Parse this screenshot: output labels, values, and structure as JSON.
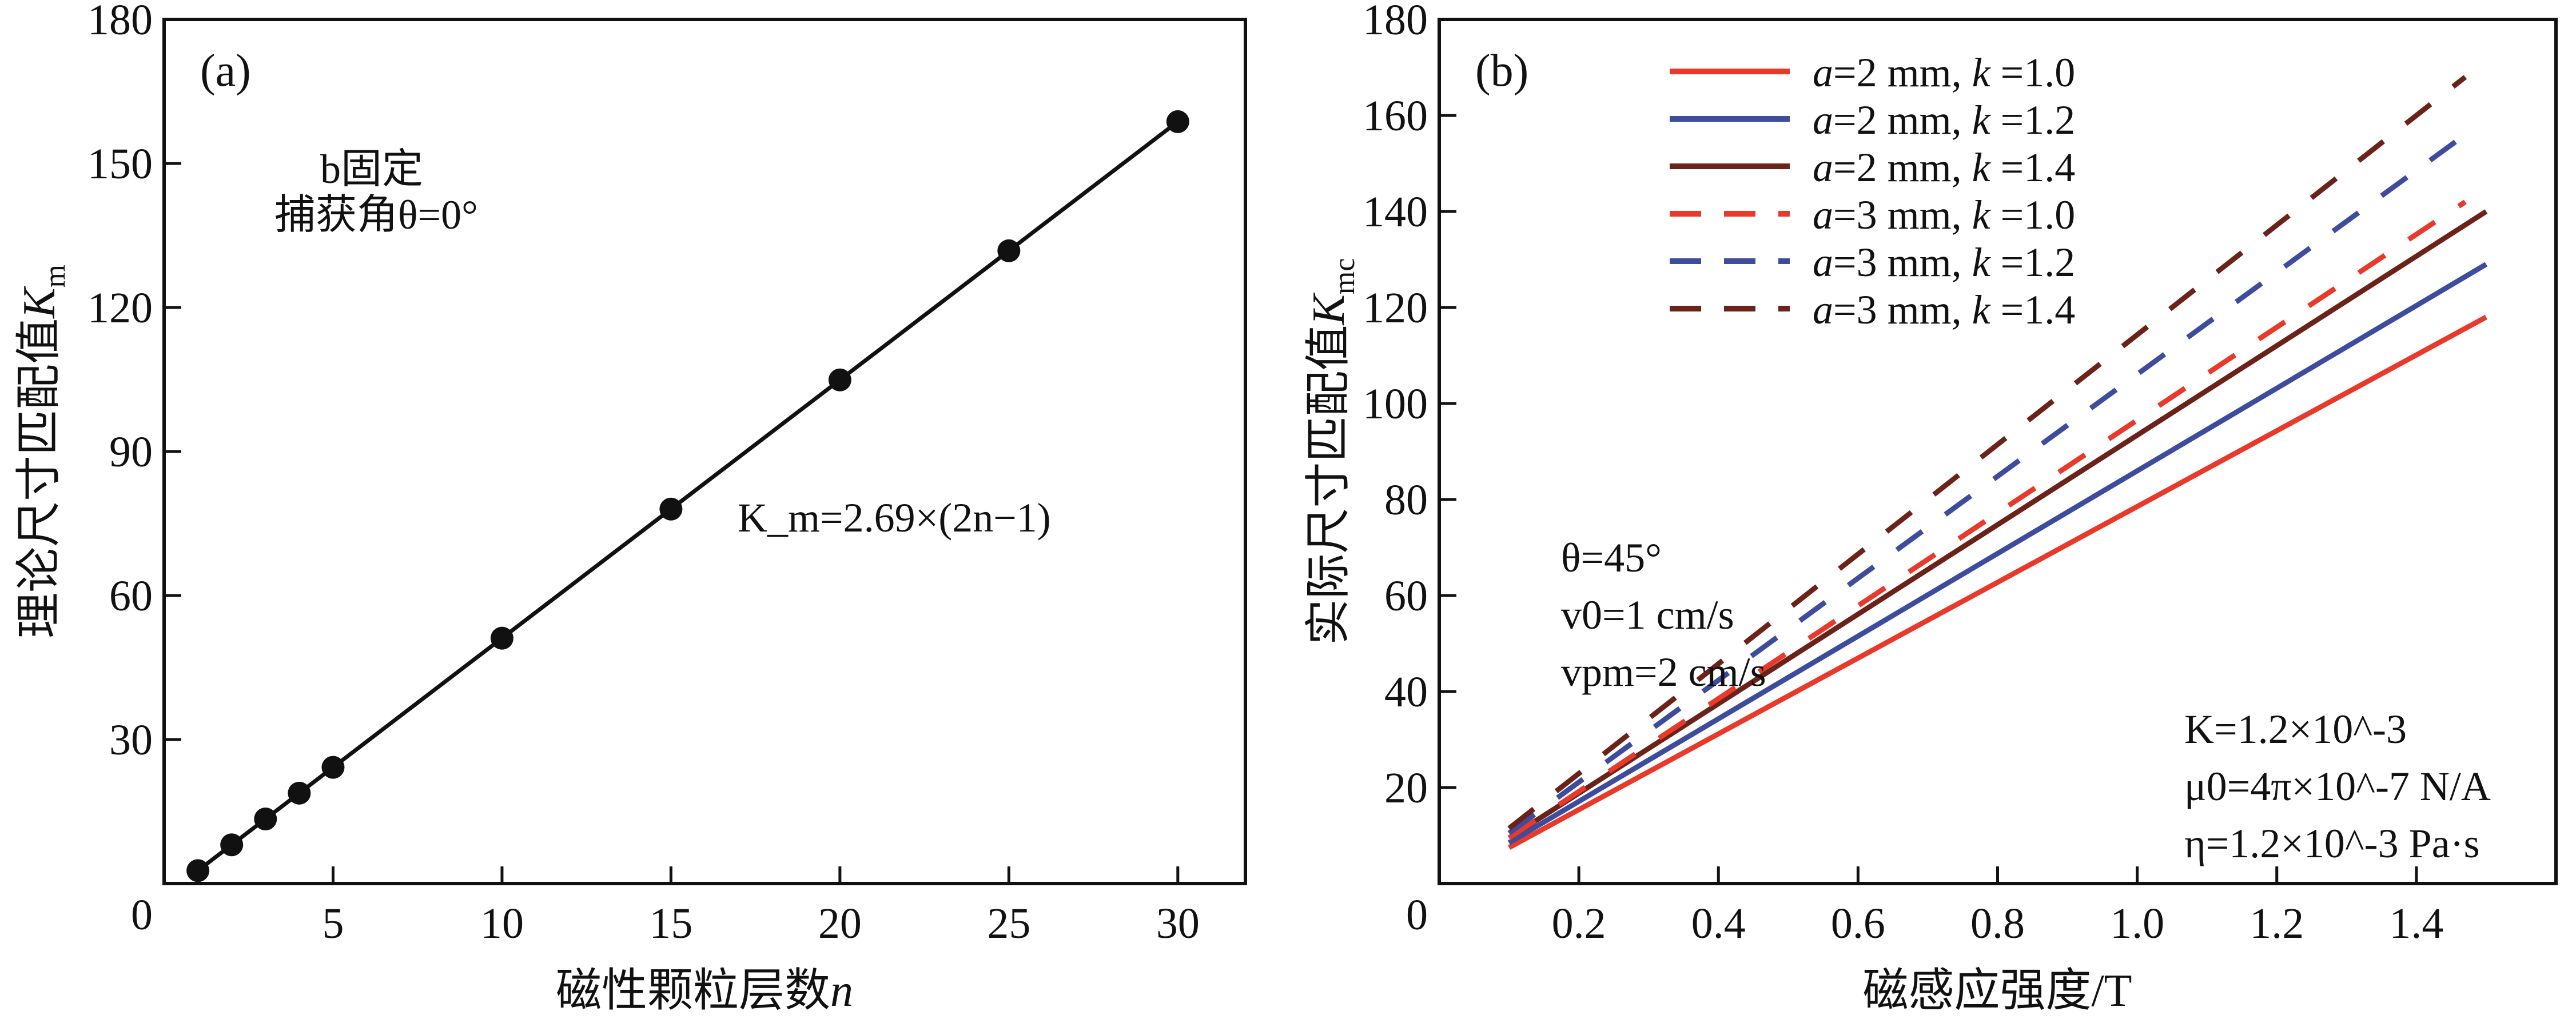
{
  "chart_data": [
    {
      "type": "scatter",
      "panel_label": "(a)",
      "xlabel": "磁性颗粒层数n",
      "ylabel": "理论尺寸匹配值K_m",
      "xlim": [
        0,
        32
      ],
      "ylim": [
        0,
        180
      ],
      "xticks": [
        5,
        10,
        15,
        20,
        25,
        30
      ],
      "yticks": [
        0,
        30,
        60,
        90,
        120,
        150,
        180
      ],
      "grid": false,
      "annotations": [
        "b固定",
        "捕获角θ=0°",
        "K_m=2.69×(2n−1)"
      ],
      "fit_line": {
        "style": "solid",
        "color": "#111111"
      },
      "x": [
        1,
        2,
        3,
        4,
        5,
        10,
        15,
        20,
        25,
        30
      ],
      "y": [
        2.69,
        8.07,
        13.45,
        18.83,
        24.21,
        51.11,
        78.01,
        104.91,
        131.81,
        158.71
      ]
    },
    {
      "type": "line",
      "panel_label": "(b)",
      "xlabel": "磁感应强度/T",
      "ylabel": "实际尺寸匹配值K_mc",
      "xlim": [
        0,
        1.6
      ],
      "ylim": [
        0,
        180
      ],
      "xticks": [
        "0.2",
        "0.4",
        "0.6",
        "0.8",
        "1.0",
        "1.2",
        "1.4"
      ],
      "yticks": [
        0,
        20,
        40,
        60,
        80,
        100,
        120,
        140,
        160,
        180
      ],
      "grid": false,
      "legend": "top-left",
      "annotations": [
        "θ=45°",
        "v0=1 cm/s",
        "vpm=2 cm/s",
        "K=1.2×10^-3",
        "μ0=4π×10^-7 N/A",
        "η=1.2×10^-3 Pa·s"
      ],
      "series": [
        {
          "name": "a=2 mm, k=1.0",
          "color": "#e8392b",
          "style": "solid",
          "x": [
            0.1,
            1.5
          ],
          "y": [
            7.5,
            118
          ]
        },
        {
          "name": "a=2 mm, k=1.2",
          "color": "#3d4c9c",
          "style": "solid",
          "x": [
            0.1,
            1.5
          ],
          "y": [
            8.5,
            129
          ]
        },
        {
          "name": "a=2 mm, k=1.4",
          "color": "#6b2219",
          "style": "solid",
          "x": [
            0.1,
            1.5
          ],
          "y": [
            9.5,
            140
          ]
        },
        {
          "name": "a=3 mm, k=1.0",
          "color": "#e8392b",
          "style": "dashed",
          "x": [
            0.1,
            1.47
          ],
          "y": [
            9.5,
            142
          ]
        },
        {
          "name": "a=3 mm, k=1.2",
          "color": "#3d4c9c",
          "style": "dashed",
          "x": [
            0.1,
            1.47
          ],
          "y": [
            10.5,
            156
          ]
        },
        {
          "name": "a=3 mm, k=1.4",
          "color": "#6b2219",
          "style": "dashed",
          "x": [
            0.1,
            1.47
          ],
          "y": [
            11.5,
            168
          ]
        }
      ]
    }
  ]
}
